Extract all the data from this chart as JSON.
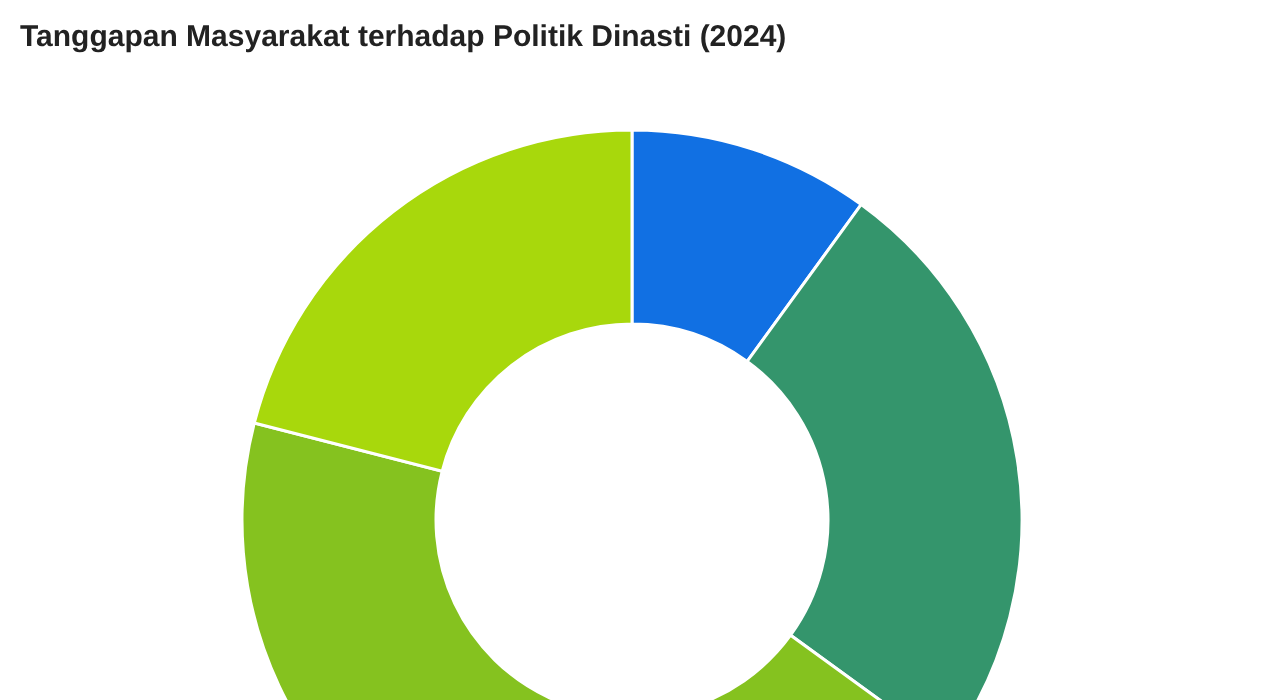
{
  "chart_data": {
    "type": "donut",
    "title": "Tanggapan Masyarakat terhadap Politik Dinasti (2024)",
    "categories": [
      null,
      null,
      null,
      null
    ],
    "values": [
      10,
      25,
      44,
      21
    ],
    "colors": [
      "#1170e3",
      "#34956c",
      "#85c21f",
      "#a8d80c"
    ]
  }
}
